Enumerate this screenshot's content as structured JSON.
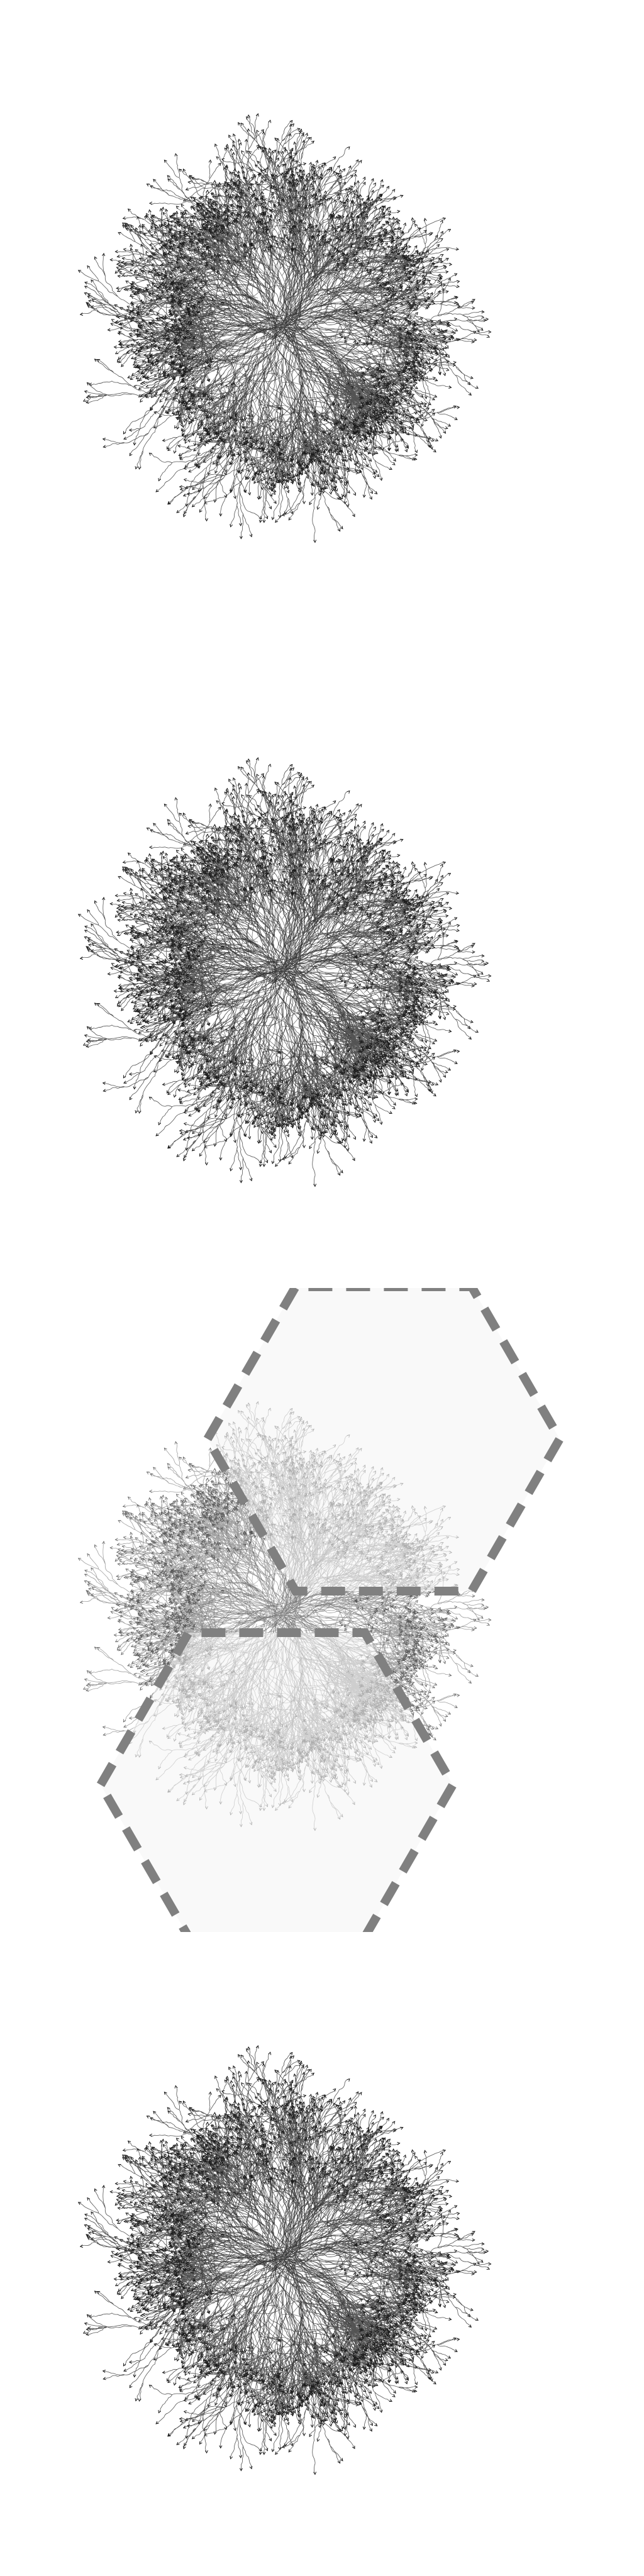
{
  "panels": [
    {
      "id": "panel-1",
      "variant": "plain"
    },
    {
      "id": "panel-2",
      "variant": "plain"
    },
    {
      "id": "panel-3",
      "variant": "hexagon-overlay"
    },
    {
      "id": "panel-4",
      "variant": "plain"
    }
  ],
  "colors": {
    "background": "#ffffff",
    "branch": "#1a1a1a",
    "hexagon_stroke": "#808080",
    "hexagon_fill": "#f4f4f4"
  },
  "icons": [
    "arrowhead-tip-icon"
  ]
}
